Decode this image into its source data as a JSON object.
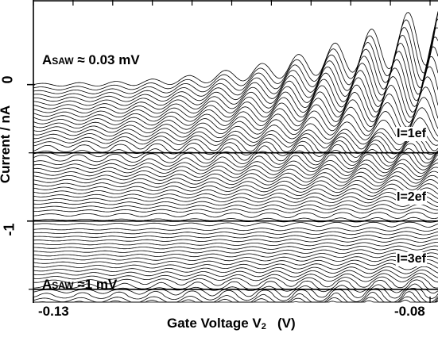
{
  "chart_data": {
    "type": "line",
    "xlabel": {
      "prefix": "Gate Voltage V",
      "subscript": "2",
      "unit": "(V)"
    },
    "ylabel": "Current / nA",
    "xlim": [
      -0.13,
      -0.079
    ],
    "ylim": [
      -1.6,
      0.62
    ],
    "x_tick_labels": [
      {
        "value": -0.13,
        "text": "-0.13"
      },
      {
        "value": -0.08,
        "text": "-0.08"
      }
    ],
    "y_tick_labels": [
      {
        "value": 0,
        "text": "0"
      },
      {
        "value": -1,
        "text": "-1"
      }
    ],
    "plateaus": [
      {
        "value": -0.5,
        "text": "I=1ef"
      },
      {
        "value": -1.0,
        "text": "I=2ef"
      },
      {
        "value": -1.5,
        "text": "I=3ef"
      }
    ],
    "annotations": {
      "top": {
        "prefix": "A",
        "sc": "SAW",
        "suffix": " ≈ 0.03 mV",
        "value": 0.15
      },
      "bottom": {
        "prefix": "A",
        "sc": "SAW",
        "suffix": " ≈1 mV",
        "value": -1.63
      }
    },
    "series": {
      "count": 61,
      "amplitude_first_mV": 0.03,
      "amplitude_last_mV": 1.0,
      "description_of_trend": "Traces stepped downward with increasing SAW amplitude; each shows oscillations with Gate Voltage V2 that flatten onto current plateaus at multiples of ef."
    }
  }
}
